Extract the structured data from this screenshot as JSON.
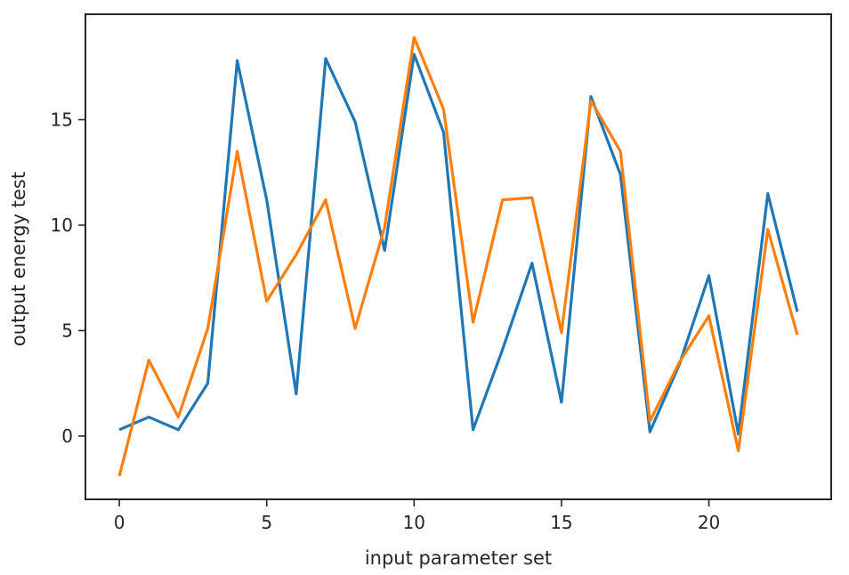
{
  "chart_data": {
    "type": "line",
    "xlabel": "input parameter set",
    "ylabel": "output energy test",
    "xlim": [
      -1.15,
      24.15
    ],
    "ylim": [
      -3.0,
      20.0
    ],
    "xticks": [
      0,
      5,
      10,
      15,
      20
    ],
    "xtick_labels": [
      "0",
      "5",
      "10",
      "15",
      "20"
    ],
    "yticks": [
      0,
      5,
      10,
      15
    ],
    "ytick_labels": [
      "0",
      "5",
      "10",
      "15"
    ],
    "grid": false,
    "legend": "none",
    "x": [
      0,
      1,
      2,
      3,
      4,
      5,
      6,
      7,
      8,
      9,
      10,
      11,
      12,
      13,
      14,
      15,
      16,
      17,
      18,
      19,
      20,
      21,
      22,
      23
    ],
    "series": [
      {
        "color": "#1f77b4",
        "values": [
          0.3,
          0.9,
          0.3,
          2.5,
          17.8,
          11.2,
          2.0,
          17.9,
          14.9,
          8.8,
          18.1,
          14.4,
          0.3,
          4.1,
          8.2,
          1.6,
          16.1,
          12.4,
          0.2,
          3.4,
          7.6,
          0.1,
          11.5,
          5.9
        ]
      },
      {
        "color": "#ff7f0e",
        "values": [
          -1.9,
          3.6,
          0.9,
          5.1,
          13.5,
          6.4,
          8.6,
          11.2,
          5.1,
          9.9,
          18.9,
          15.5,
          5.4,
          11.2,
          11.3,
          4.9,
          15.9,
          13.5,
          0.7,
          3.5,
          5.7,
          -0.7,
          9.8,
          4.8
        ]
      }
    ]
  }
}
